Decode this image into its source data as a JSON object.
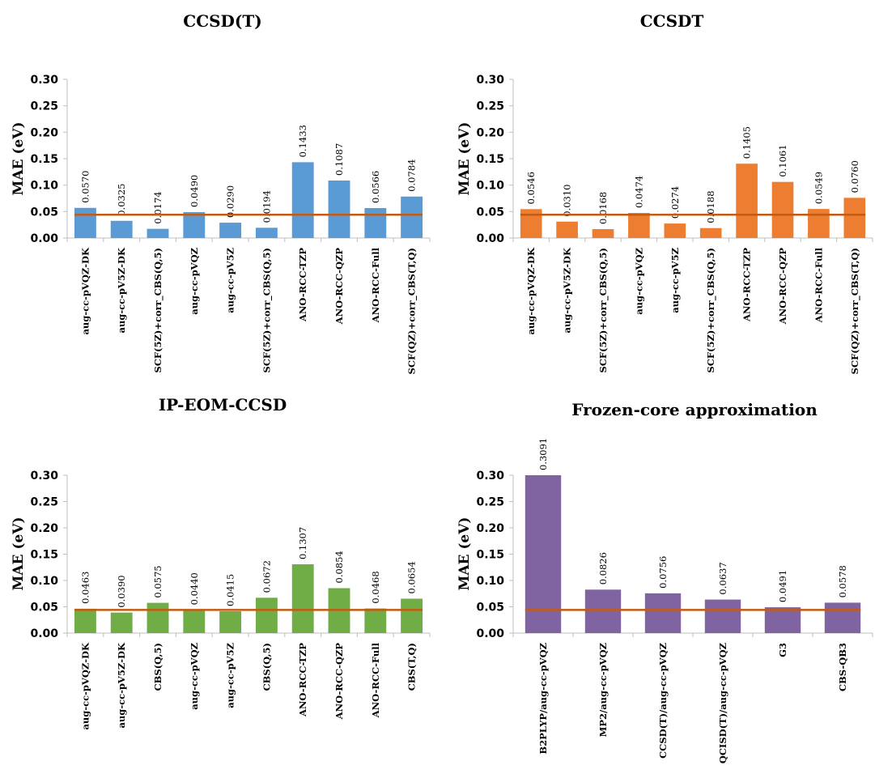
{
  "chart_data": [
    {
      "type": "bar",
      "title": "CCSD(T)",
      "ylabel": "MAE (eV)",
      "ylim": [
        0,
        0.3
      ],
      "yticks": [
        "0.00",
        "0.05",
        "0.10",
        "0.15",
        "0.20",
        "0.25",
        "0.30"
      ],
      "color": "#5b9bd5",
      "reference_line": 0.044,
      "reference_color": "#c55a11",
      "categories": [
        "aug-cc-pVQZ-DK",
        "aug-cc-pV5Z-DK",
        "SCF(5Z)+corr_CBS(Q,5)",
        "aug-cc-pVQZ",
        "aug-cc-pV5Z",
        "SCF(5Z)+corr_CBS(Q,5)",
        "ANO-RCC-TZP",
        "ANO-RCC-QZP",
        "ANO-RCC-Full",
        "SCF(QZ)+corr_CBS(T,Q)"
      ],
      "values": [
        0.057,
        0.0325,
        0.0174,
        0.049,
        0.029,
        0.0194,
        0.1433,
        0.1087,
        0.0566,
        0.0784
      ],
      "labels": [
        "0.0570",
        "0.0325",
        "0.0174",
        "0.0490",
        "0.0290",
        "0.0194",
        "0.1433",
        "0.1087",
        "0.0566",
        "0.0784"
      ]
    },
    {
      "type": "bar",
      "title": "CCSDT",
      "ylabel": "MAE (eV)",
      "ylim": [
        0,
        0.3
      ],
      "yticks": [
        "0.00",
        "0.05",
        "0.10",
        "0.15",
        "0.20",
        "0.25",
        "0.30"
      ],
      "color": "#ed7d31",
      "reference_line": 0.044,
      "reference_color": "#c55a11",
      "categories": [
        "aug-cc-pVQZ-DK",
        "aug-cc-pV5Z-DK",
        "SCF(5Z)+corr_CBS(Q,5)",
        "aug-cc-pVQZ",
        "aug-cc-pV5Z",
        "SCF(5Z)+corr_CBS(Q,5)",
        "ANO-RCC-TZP",
        "ANO-RCC-QZP",
        "ANO-RCC-Full",
        "SCF(QZ)+corr_CBS(T,Q)"
      ],
      "values": [
        0.0546,
        0.031,
        0.0168,
        0.0474,
        0.0274,
        0.0188,
        0.1405,
        0.1061,
        0.0549,
        0.076
      ],
      "labels": [
        "0.0546",
        "0.0310",
        "0.0168",
        "0.0474",
        "0.0274",
        "0.0188",
        "0.1405",
        "0.1061",
        "0.0549",
        "0.0760"
      ]
    },
    {
      "type": "bar",
      "title": "IP-EOM-CCSD",
      "ylabel": "MAE (eV)",
      "ylim": [
        0,
        0.3
      ],
      "yticks": [
        "0.00",
        "0.05",
        "0.10",
        "0.15",
        "0.20",
        "0.25",
        "0.30"
      ],
      "color": "#70ad47",
      "reference_line": 0.044,
      "reference_color": "#c55a11",
      "categories": [
        "aug-cc-pVQZ-DK",
        "aug-cc-pV5Z-DK",
        "CBS(Q,5)",
        "aug-cc-pVQZ",
        "aug-cc-pV5Z",
        "CBS(Q,5)",
        "ANO-RCC-TZP",
        "ANO-RCC-QZP",
        "ANO-RCC-Full",
        "CBS(T,Q)"
      ],
      "values": [
        0.0463,
        0.039,
        0.0575,
        0.044,
        0.0415,
        0.0672,
        0.1307,
        0.0854,
        0.0468,
        0.0654
      ],
      "labels": [
        "0.0463",
        "0.0390",
        "0.0575",
        "0.0440",
        "0.0415",
        "0.0672",
        "0.1307",
        "0.0854",
        "0.0468",
        "0.0654"
      ]
    },
    {
      "type": "bar",
      "title": "Frozen-core approximation",
      "ylabel": "MAE (eV)",
      "ylim": [
        0,
        0.3
      ],
      "yticks": [
        "0.00",
        "0.05",
        "0.10",
        "0.15",
        "0.20",
        "0.25",
        "0.30"
      ],
      "color": "#8064a2",
      "reference_line": 0.044,
      "reference_color": "#c55a11",
      "categories": [
        "B2PLYP/aug-cc-pVQZ",
        "MP2/aug-cc-pVQZ",
        "CCSD(T)/aug-cc-pVQZ",
        "QCISD(T)/aug-cc-pVQZ",
        "G3",
        "CBS-QB3"
      ],
      "values": [
        0.3091,
        0.0826,
        0.0756,
        0.0637,
        0.0491,
        0.0578
      ],
      "labels": [
        "0.3091",
        "0.0826",
        "0.0756",
        "0.0637",
        "0.0491",
        "0.0578"
      ]
    }
  ]
}
